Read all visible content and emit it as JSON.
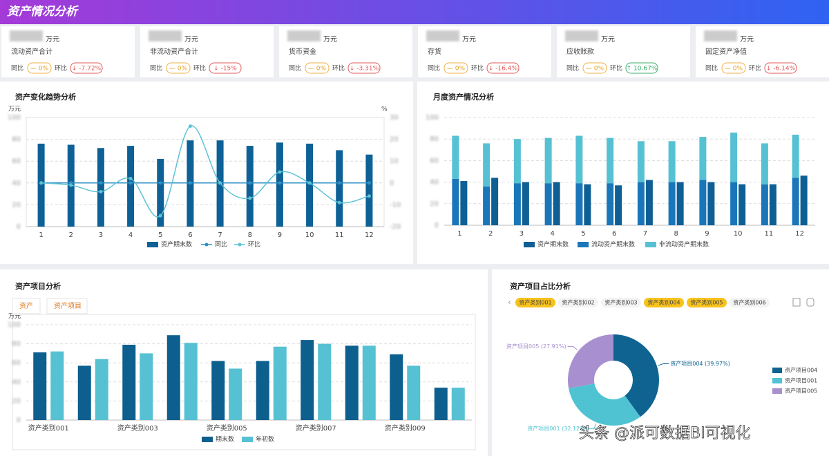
{
  "header": {
    "title": "资产情况分析"
  },
  "kpis": {
    "unit": "万元",
    "yoy_label": "同比",
    "mom_label": "环比",
    "items": [
      {
        "name": "流动资产合计",
        "yoy": "— 0%",
        "mom": "↓ -7.72%"
      },
      {
        "name": "非流动资产合计",
        "yoy": "— 0%",
        "mom": "↓ -15%"
      },
      {
        "name": "货币资金",
        "yoy": "— 0%",
        "mom": "↓ -3.31%"
      },
      {
        "name": "存货",
        "yoy": "— 0%",
        "mom": "↓ -16.4%"
      },
      {
        "name": "应收账款",
        "yoy": "— 0%",
        "mom": "↑ 10.67%"
      },
      {
        "name": "固定资产净值",
        "yoy": "— 0%",
        "mom": "↓ -6.14%"
      }
    ]
  },
  "chart_data": [
    {
      "type": "combo",
      "title": "资产变化趋势分析",
      "y_unit": "万元",
      "y2_unit": "%",
      "categories": [
        "1",
        "2",
        "3",
        "4",
        "5",
        "6",
        "7",
        "8",
        "9",
        "10",
        "11",
        "12"
      ],
      "series": [
        {
          "name": "资产期末数",
          "color": "#0d6196",
          "values": [
            76,
            75,
            72,
            74,
            62,
            79,
            79,
            74,
            77,
            76,
            70,
            66
          ]
        },
        {
          "name": "同比",
          "color": "#2e8fc4",
          "axis": "y2",
          "values": [
            0,
            0,
            0,
            0,
            0,
            0,
            0,
            0,
            0,
            0,
            0,
            0
          ]
        },
        {
          "name": "环比",
          "color": "#5bc3d4",
          "axis": "y2",
          "values": [
            0,
            -1,
            -4,
            2,
            -15,
            26,
            0,
            -7,
            5,
            0,
            -9,
            -6
          ]
        }
      ],
      "ylim": [
        0,
        100
      ],
      "yticks": [
        0,
        20,
        40,
        60,
        80,
        100
      ],
      "y2lim": [
        -20,
        30
      ],
      "y2ticks": [
        -20,
        -10,
        0,
        10,
        20,
        30
      ],
      "grid": true
    },
    {
      "type": "bar",
      "title": "月度资产情况分析",
      "categories": [
        "1",
        "2",
        "3",
        "4",
        "5",
        "6",
        "7",
        "8",
        "9",
        "10",
        "11",
        "12"
      ],
      "series": [
        {
          "name": "资产期末数",
          "color": "#0d5f94",
          "values": [
            41,
            44,
            40,
            40,
            38,
            37,
            42,
            40,
            40,
            38,
            38,
            46
          ]
        },
        {
          "name": "流动资产期末数",
          "color": "#1a76b9",
          "stack": "a",
          "values": [
            43,
            36,
            39,
            39,
            39,
            39,
            40,
            40,
            42,
            40,
            38,
            44
          ]
        },
        {
          "name": "非流动资产期末数",
          "color": "#56c1d2",
          "stack": "a",
          "values": [
            40,
            40,
            41,
            42,
            44,
            42,
            38,
            38,
            40,
            46,
            38,
            40
          ]
        }
      ],
      "ylim": [
        0,
        100
      ],
      "yticks": [
        0,
        20,
        40,
        60,
        80,
        100
      ],
      "grid": true
    },
    {
      "type": "bar",
      "title": "资产项目分析",
      "tabs": [
        "资产",
        "资产项目"
      ],
      "y_unit": "万元",
      "categories": [
        "资产类别001",
        null,
        "资产类别003",
        null,
        "资产类别005",
        null,
        "资产类别007",
        null,
        "资产类别009",
        null
      ],
      "series": [
        {
          "name": "期末数",
          "color": "#0d5f8e",
          "values": [
            71,
            57,
            79,
            89,
            62,
            62,
            84,
            78,
            69,
            34
          ]
        },
        {
          "name": "年初数",
          "color": "#56c1d2",
          "values": [
            72,
            64,
            70,
            81,
            54,
            77,
            80,
            78,
            57,
            34
          ]
        }
      ],
      "ylim": [
        0,
        100
      ],
      "yticks": [
        0,
        20,
        40,
        60,
        80,
        100
      ],
      "grid": true
    },
    {
      "type": "donut",
      "title": "资产项目占比分析",
      "tabs": [
        {
          "label": "资产类别001",
          "selected": true
        },
        {
          "label": "资产类别002",
          "selected": false
        },
        {
          "label": "资产类别003",
          "selected": false
        },
        {
          "label": "资产类别004",
          "selected": true
        },
        {
          "label": "资产类别005",
          "selected": true
        },
        {
          "label": "资产类别006",
          "selected": false
        }
      ],
      "categories": [
        "资产项目004",
        "资产项目001",
        "资产项目005"
      ],
      "values": [
        39.97,
        32.12,
        27.91
      ],
      "value_labels": [
        "资产项目004 (39.97%)",
        "资产项目001 (32.12%)",
        "资产项目005 (27.91%)"
      ],
      "colors": [
        "#0f6390",
        "#50c3d3",
        "#a88fd0"
      ]
    }
  ],
  "watermark": "头条 @派可数据BI可视化"
}
